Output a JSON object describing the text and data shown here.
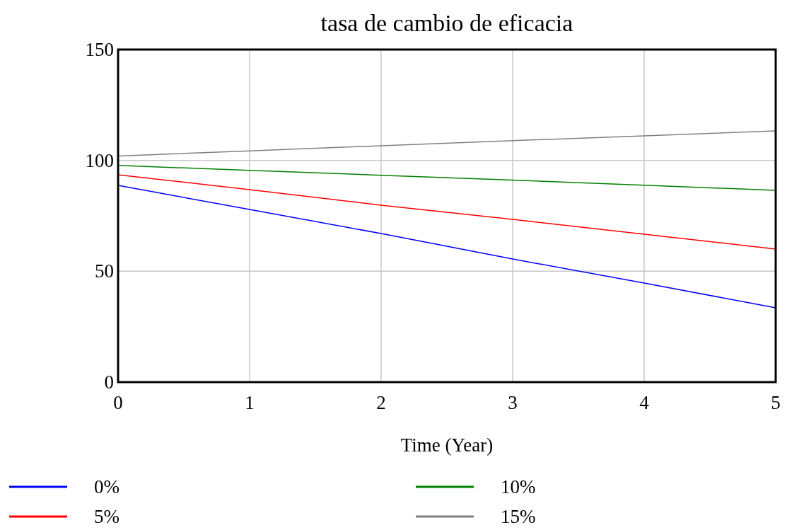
{
  "chart_data": {
    "type": "line",
    "title": "tasa de cambio de eficacia",
    "xlabel": "Time (Year)",
    "x": [
      0,
      1,
      2,
      3,
      4,
      5
    ],
    "series": [
      {
        "name": "0%",
        "color": "#0000ff",
        "values": [
          88.7,
          77.9,
          67,
          55.5,
          44.7,
          33.5
        ]
      },
      {
        "name": "5%",
        "color": "#ff0000",
        "values": [
          93.5,
          86.8,
          79.8,
          73.4,
          66.7,
          60
        ]
      },
      {
        "name": "10%",
        "color": "#008000",
        "values": [
          97.7,
          95.5,
          93.3,
          91.1,
          88.8,
          86.5
        ]
      },
      {
        "name": "15%",
        "color": "#808080",
        "values": [
          102,
          104.3,
          106.6,
          108.9,
          111.1,
          113.3
        ]
      }
    ],
    "xlim": [
      0,
      5
    ],
    "xticks": [
      0,
      1,
      2,
      3,
      4,
      5
    ],
    "ylim": [
      0,
      150
    ],
    "yticks": [
      0,
      50,
      100,
      150
    ],
    "grid": true,
    "legend": "bottom",
    "marker": "none",
    "line_style": "solid"
  }
}
